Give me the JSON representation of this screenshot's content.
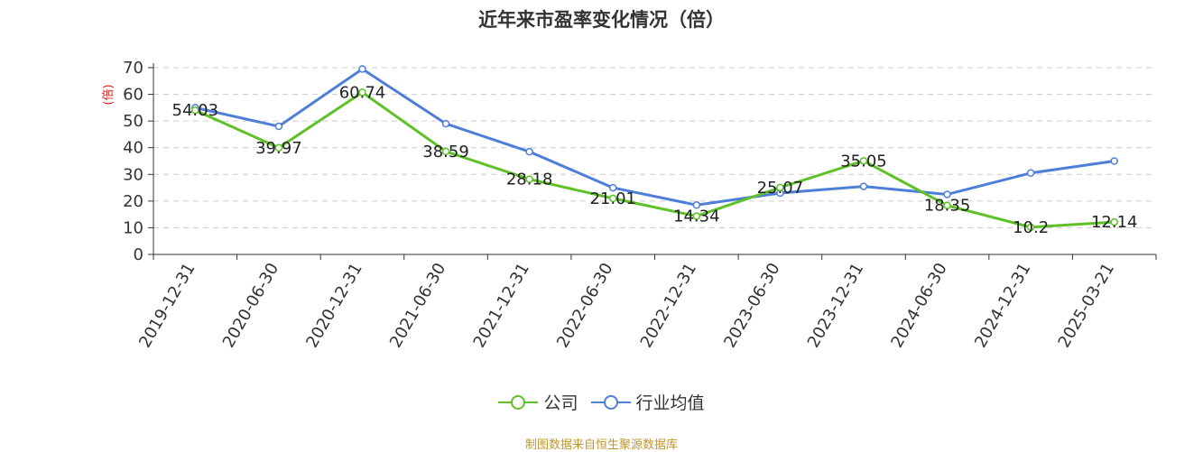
{
  "chart_data": {
    "type": "line",
    "title": "近年来市盈率变化情况（倍）",
    "ylabel": "(倍)",
    "ylim": [
      0,
      70
    ],
    "yticks": [
      0,
      10,
      20,
      30,
      40,
      50,
      60,
      70
    ],
    "categories": [
      "2019-12-31",
      "2020-06-30",
      "2020-12-31",
      "2021-06-30",
      "2021-12-31",
      "2022-06-30",
      "2022-12-31",
      "2023-06-30",
      "2023-12-31",
      "2024-06-30",
      "2024-12-31",
      "2025-03-21"
    ],
    "series": [
      {
        "name": "公司",
        "color": "#5ec227",
        "values": [
          54.03,
          39.97,
          60.74,
          38.59,
          28.18,
          21.01,
          14.34,
          25.07,
          35.05,
          18.35,
          10.2,
          12.14
        ],
        "labels": [
          "54.03",
          "39.97",
          "60.74",
          "38.59",
          "28.18",
          "21.01",
          "14.34",
          "25.07",
          "35.05",
          "18.35",
          "10.2",
          "12.14"
        ]
      },
      {
        "name": "行业均值",
        "color": "#4e7fd8",
        "values": [
          55,
          48,
          69.5,
          49,
          38.5,
          25,
          18.5,
          23,
          25.5,
          22.5,
          30.5,
          35
        ]
      }
    ],
    "grid": true,
    "legend_position": "bottom"
  },
  "source": "制图数据来自恒生聚源数据库"
}
